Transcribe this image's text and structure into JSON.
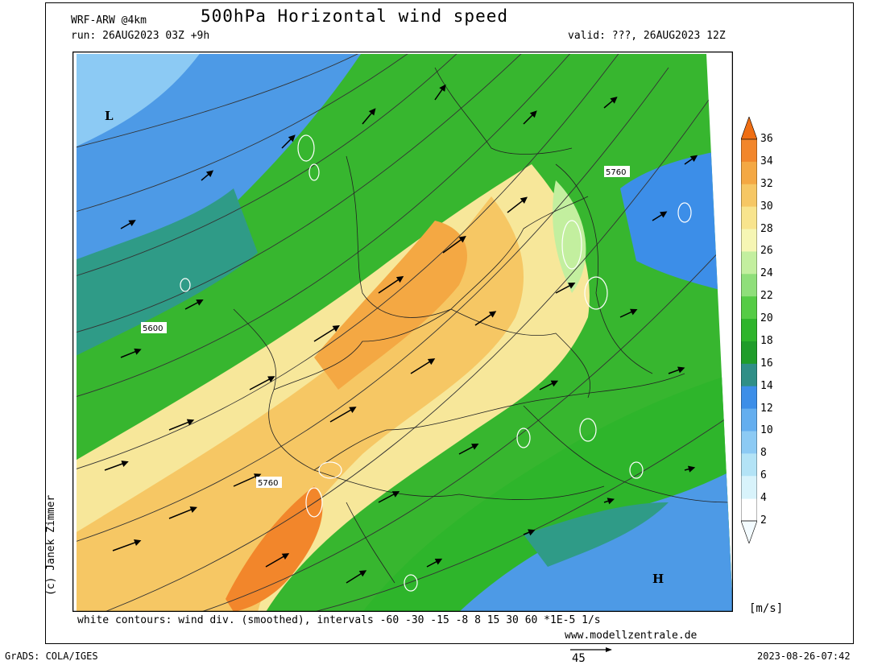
{
  "header": {
    "model": "WRF-ARW @4km",
    "title": "500hPa Horizontal wind speed",
    "run": "run: 26AUG2023 03Z +9h",
    "valid": "valid: ???, 26AUG2023 12Z"
  },
  "credit": "(c) Janek Zimmer",
  "footer": {
    "note": "white contours: wind div. (smoothed), intervals -60 -30 -15 -8 8 15 30 60 *1E-5 1/s",
    "website": "www.modellzentrale.de",
    "software": "GrADS: COLA/IGES",
    "timestamp": "2023-08-26-07:42",
    "reference_vector": "45"
  },
  "map_labels": {
    "low": "L",
    "high": "H",
    "contour_5600": "5600",
    "contour_5760_ne": "5760",
    "contour_5760_sw": "5760"
  },
  "colorbar": {
    "unit": "[m/s]",
    "ticks": [
      "2",
      "4",
      "6",
      "8",
      "10",
      "12",
      "14",
      "16",
      "18",
      "20",
      "22",
      "24",
      "26",
      "28",
      "30",
      "32",
      "34",
      "36"
    ],
    "colors": [
      "#f3fbff",
      "#d8f3fb",
      "#b3e3f6",
      "#8ccaf4",
      "#64aeef",
      "#3c8ee8",
      "#2f8f87",
      "#1f9d2a",
      "#2eb52b",
      "#55cc45",
      "#8fdf7a",
      "#c3ef9f",
      "#f6f6b4",
      "#f8e48d",
      "#f6c764",
      "#f4a843",
      "#f2862b",
      "#ef6e14"
    ]
  },
  "colors": {
    "strong": "#f3b04c",
    "jet_core": "#f49a36",
    "moderate": "#f7e79a",
    "weak_green": "#37b62f",
    "teal": "#2f9b87",
    "blue": "#4d9ae6"
  }
}
